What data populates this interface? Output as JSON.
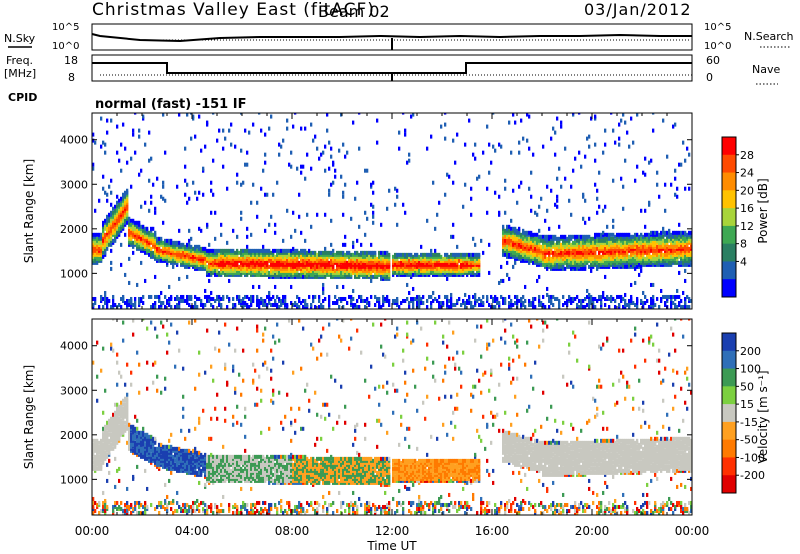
{
  "header": {
    "title": "Christmas Valley East (fitACF)",
    "beam": "Beam 02",
    "date": "03/Jan/2012"
  },
  "top_panels": {
    "nsky_label": "N.Sky",
    "nsky_ticks": [
      "10^5",
      "10^0"
    ],
    "nsearch_label": "N.Search",
    "nsearch_ticks": [
      "10^5",
      "10^0"
    ],
    "freq_label_1": "Freq.",
    "freq_label_2": "[MHz]",
    "freq_ticks": [
      "18",
      "8"
    ],
    "nave_label": "Nave",
    "nave_ticks": [
      "60",
      "0"
    ],
    "cpid_label": "CPID",
    "cpid_text": "normal (fast) -151 IF"
  },
  "chart_data": [
    {
      "type": "heatmap",
      "name": "power",
      "ylabel": "Slant Range [km]",
      "yticks": [
        1000,
        2000,
        3000,
        4000
      ],
      "ylim": [
        200,
        4600
      ],
      "xlim_hours": [
        0,
        24
      ],
      "colorbar": {
        "label": "Power [dB]",
        "ticks": [
          "28",
          "24",
          "20",
          "16",
          "12",
          "8",
          "4"
        ],
        "colors": [
          "#ff0000",
          "#ff4a00",
          "#ff8c00",
          "#ffc200",
          "#a8d43a",
          "#3ea853",
          "#2a7f62",
          "#1f5fb3",
          "#0000ff"
        ]
      }
    },
    {
      "type": "heatmap",
      "name": "velocity",
      "ylabel": "Slant Range [km]",
      "yticks": [
        1000,
        2000,
        3000,
        4000
      ],
      "ylim": [
        200,
        4600
      ],
      "xlim_hours": [
        0,
        24
      ],
      "colorbar": {
        "label": "Velocity [m s⁻¹]",
        "ticks": [
          "200",
          "100",
          "50",
          "15",
          "-15",
          "-50",
          "-100",
          "-200"
        ],
        "colors": [
          "#1a3fb0",
          "#2f6fb8",
          "#3c9a54",
          "#7cd040",
          "#c8c8c0",
          "#ffa020",
          "#ff7a00",
          "#ff3000",
          "#e00000"
        ]
      }
    }
  ],
  "xaxis": {
    "label": "Time UT",
    "ticks": [
      "00:00",
      "04:00",
      "08:00",
      "12:00",
      "16:00",
      "20:00",
      "00:00"
    ]
  }
}
